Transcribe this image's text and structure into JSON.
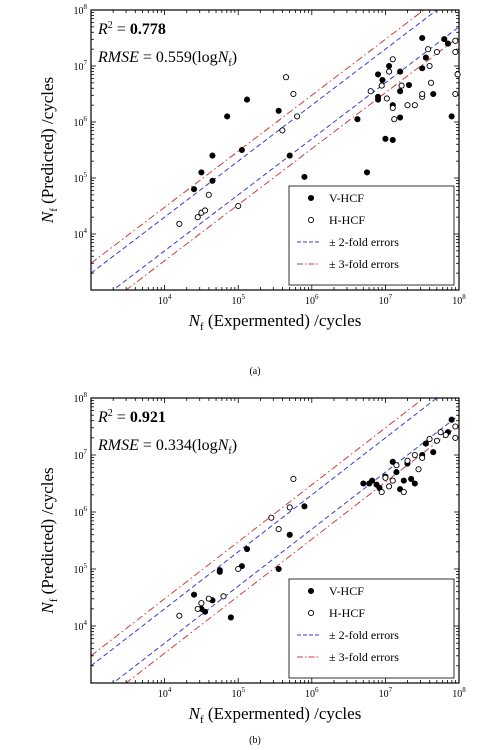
{
  "chart_data": [
    {
      "type": "scatter",
      "panel_label": "(a)",
      "xlabel": {
        "sym": "N",
        "sub": "f",
        "rest": " (Expermented) /cycles"
      },
      "ylabel": {
        "sym": "N",
        "sub": "f",
        "rest": " (Predicted) /cycles"
      },
      "scale": "log",
      "xlim": [
        3.0,
        8.0
      ],
      "ylim": [
        3.0,
        8.0
      ],
      "ticks": [
        {
          "mant": "10",
          "exp": "4",
          "v": 4
        },
        {
          "mant": "10",
          "exp": "5",
          "v": 5
        },
        {
          "mant": "10",
          "exp": "6",
          "v": 6
        },
        {
          "mant": "10",
          "exp": "7",
          "v": 7
        },
        {
          "mant": "10",
          "exp": "8",
          "v": 8
        }
      ],
      "r2": {
        "sym": "R",
        "sup": "2",
        "eq": " = ",
        "value": "0.778"
      },
      "rmse": {
        "label": "RMSE",
        "eq": " = ",
        "value": "0.559(log",
        "sym": "N",
        "sub": "f",
        "close": ")"
      },
      "legend": [
        {
          "label": "V-HCF",
          "kind": "filled"
        },
        {
          "label": "H-HCF",
          "kind": "open"
        },
        {
          "label": "± 2-fold errors",
          "kind": "dash",
          "color": "#3a3ad6"
        },
        {
          "label": "± 3-fold errors",
          "kind": "dashdot",
          "color": "#d43a3a"
        }
      ],
      "series": [
        {
          "name": "V-HCF",
          "points": [
            [
              4.4,
              4.8
            ],
            [
              4.5,
              5.1
            ],
            [
              4.65,
              5.4
            ],
            [
              4.65,
              4.95
            ],
            [
              4.85,
              6.1
            ],
            [
              5.05,
              5.5
            ],
            [
              5.12,
              6.4
            ],
            [
              5.55,
              6.2
            ],
            [
              5.7,
              5.4
            ],
            [
              5.9,
              5.02
            ],
            [
              6.75,
              5.1
            ],
            [
              6.62,
              6.05
            ],
            [
              6.9,
              6.45
            ],
            [
              7.1,
              6.3
            ],
            [
              7.2,
              6.55
            ],
            [
              6.9,
              6.85
            ],
            [
              7.0,
              5.7
            ],
            [
              6.96,
              6.75
            ],
            [
              7.05,
              7.0
            ],
            [
              7.2,
              6.08
            ],
            [
              7.32,
              6.66
            ],
            [
              7.5,
              6.96
            ],
            [
              7.55,
              7.15
            ],
            [
              7.5,
              7.5
            ],
            [
              7.8,
              7.48
            ],
            [
              7.85,
              7.4
            ],
            [
              7.1,
              5.68
            ],
            [
              6.9,
              6.4
            ],
            [
              7.2,
              6.9
            ],
            [
              7.65,
              6.5
            ],
            [
              7.9,
              6.1
            ]
          ]
        },
        {
          "name": "H-HCF",
          "points": [
            [
              4.2,
              4.18
            ],
            [
              4.45,
              4.3
            ],
            [
              4.5,
              4.38
            ],
            [
              4.55,
              4.42
            ],
            [
              4.6,
              4.7
            ],
            [
              5.0,
              4.5
            ],
            [
              5.6,
              5.85
            ],
            [
              5.65,
              6.8
            ],
            [
              5.75,
              6.5
            ],
            [
              5.8,
              6.1
            ],
            [
              6.8,
              6.55
            ],
            [
              6.95,
              6.65
            ],
            [
              7.05,
              6.9
            ],
            [
              7.1,
              6.25
            ],
            [
              7.3,
              6.3
            ],
            [
              7.4,
              6.3
            ],
            [
              7.5,
              6.45
            ],
            [
              7.6,
              7.0
            ],
            [
              7.7,
              7.25
            ],
            [
              7.95,
              7.45
            ],
            [
              7.95,
              7.25
            ],
            [
              7.98,
              6.85
            ],
            [
              7.1,
              7.12
            ],
            [
              7.12,
              6.05
            ],
            [
              7.02,
              6.42
            ],
            [
              7.22,
              6.65
            ],
            [
              7.5,
              6.5
            ],
            [
              7.62,
              6.7
            ],
            [
              7.58,
              7.3
            ],
            [
              7.95,
              6.5
            ]
          ]
        }
      ]
    },
    {
      "type": "scatter",
      "panel_label": "(b)",
      "xlabel": {
        "sym": "N",
        "sub": "f",
        "rest": " (Expermented) /cycles"
      },
      "ylabel": {
        "sym": "N",
        "sub": "f",
        "rest": " (Predicted) /cycles"
      },
      "scale": "log",
      "xlim": [
        3.0,
        8.0
      ],
      "ylim": [
        3.0,
        8.0
      ],
      "ticks": [
        {
          "mant": "10",
          "exp": "4",
          "v": 4
        },
        {
          "mant": "10",
          "exp": "5",
          "v": 5
        },
        {
          "mant": "10",
          "exp": "6",
          "v": 6
        },
        {
          "mant": "10",
          "exp": "7",
          "v": 7
        },
        {
          "mant": "10",
          "exp": "8",
          "v": 8
        }
      ],
      "r2": {
        "sym": "R",
        "sup": "2",
        "eq": " = ",
        "value": "0.921"
      },
      "rmse": {
        "label": "RMSE",
        "eq": " = ",
        "value": "0.334(log",
        "sym": "N",
        "sub": "f",
        "close": ")"
      },
      "legend": [
        {
          "label": "V-HCF",
          "kind": "filled"
        },
        {
          "label": "H-HCF",
          "kind": "open"
        },
        {
          "label": "± 2-fold errors",
          "kind": "dash",
          "color": "#3a3ad6"
        },
        {
          "label": "± 3-fold errors",
          "kind": "dashdot",
          "color": "#d43a3a"
        }
      ],
      "series": [
        {
          "name": "V-HCF",
          "points": [
            [
              4.4,
              4.55
            ],
            [
              4.5,
              4.3
            ],
            [
              4.55,
              4.25
            ],
            [
              4.65,
              4.45
            ],
            [
              4.75,
              4.95
            ],
            [
              4.75,
              4.98
            ],
            [
              4.9,
              4.15
            ],
            [
              5.05,
              5.05
            ],
            [
              5.12,
              5.35
            ],
            [
              5.55,
              5.0
            ],
            [
              5.7,
              5.6
            ],
            [
              5.9,
              6.1
            ],
            [
              6.7,
              6.5
            ],
            [
              6.78,
              6.5
            ],
            [
              6.82,
              6.55
            ],
            [
              6.88,
              6.48
            ],
            [
              6.92,
              6.42
            ],
            [
              7.0,
              6.62
            ],
            [
              7.1,
              6.88
            ],
            [
              7.2,
              6.4
            ],
            [
              7.3,
              6.85
            ],
            [
              7.35,
              6.58
            ],
            [
              7.5,
              7.0
            ],
            [
              7.55,
              7.2
            ],
            [
              7.65,
              7.05
            ],
            [
              7.85,
              7.4
            ],
            [
              7.9,
              7.62
            ],
            [
              7.4,
              6.5
            ],
            [
              7.25,
              6.55
            ],
            [
              7.15,
              6.7
            ]
          ]
        },
        {
          "name": "H-HCF",
          "points": [
            [
              4.2,
              4.18
            ],
            [
              4.45,
              4.3
            ],
            [
              4.5,
              4.4
            ],
            [
              4.6,
              4.48
            ],
            [
              4.8,
              4.52
            ],
            [
              5.0,
              5.0
            ],
            [
              5.45,
              5.9
            ],
            [
              5.55,
              5.7
            ],
            [
              5.7,
              6.08
            ],
            [
              5.75,
              6.58
            ],
            [
              6.95,
              6.35
            ],
            [
              7.0,
              6.6
            ],
            [
              7.05,
              6.45
            ],
            [
              7.1,
              6.55
            ],
            [
              7.15,
              6.82
            ],
            [
              7.3,
              6.9
            ],
            [
              7.4,
              7.0
            ],
            [
              7.5,
              6.95
            ],
            [
              7.6,
              7.28
            ],
            [
              7.7,
              7.25
            ],
            [
              7.75,
              7.4
            ],
            [
              7.82,
              7.35
            ],
            [
              7.95,
              7.5
            ],
            [
              7.95,
              7.3
            ],
            [
              7.25,
              6.35
            ],
            [
              7.45,
              6.75
            ]
          ]
        }
      ]
    }
  ]
}
